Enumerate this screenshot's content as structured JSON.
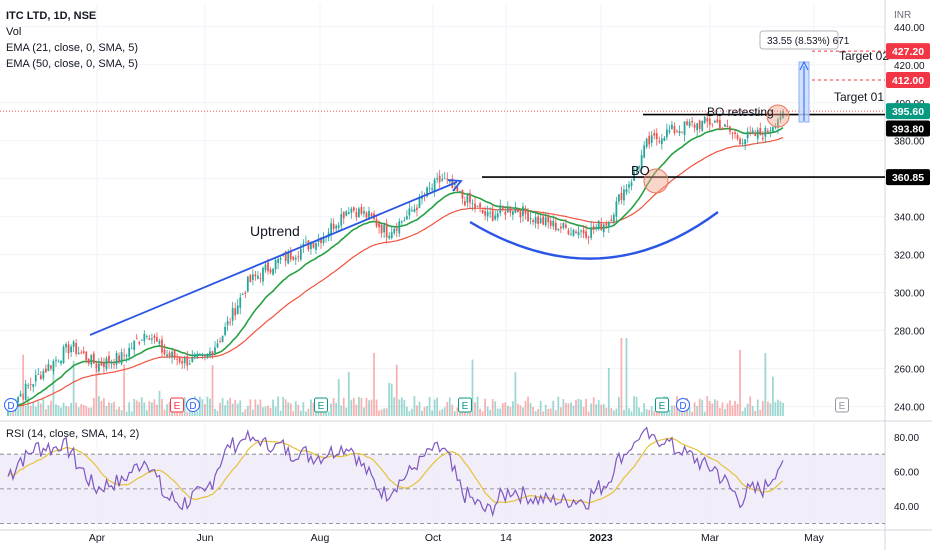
{
  "header": {
    "symbol_line": "ITC LTD, 1D, NSE",
    "indicators": [
      "Vol",
      "EMA (21, close, 0, SMA, 5)",
      "EMA (50, close, 0, SMA, 5)"
    ],
    "currency": "INR"
  },
  "rsi_label": "RSI (14, close, SMA, 14, 2)",
  "colors": {
    "up": "#26a69a",
    "down": "#ef5350",
    "ema21": "#26a043",
    "ema50": "#f0533d",
    "trend_arrow": "#2a55e5",
    "cup": "#2a55e5",
    "rsi": "#7e57c2",
    "rsi_ma": "#e5c23a",
    "rsi_band": "#ede7f6",
    "resistance": "#000000",
    "bo_circle": "#f4a38a",
    "target_box": "#c5d9fb"
  },
  "annotations": {
    "uptrend": "Uptrend",
    "bo": "BO",
    "bo_retesting": "BO retesting",
    "target_01": "Target 01",
    "target_02": "Target 02",
    "measure_text": "33.55 (8.53%) 671"
  },
  "price_badges": [
    {
      "value": "427.20",
      "bg": "#f23645",
      "fg": "#ffffff"
    },
    {
      "value": "412.00",
      "bg": "#f23645",
      "fg": "#ffffff"
    },
    {
      "value": "395.60",
      "bg": "#089981",
      "fg": "#ffffff"
    },
    {
      "value": "393.80",
      "bg": "#000000",
      "fg": "#ffffff"
    },
    {
      "value": "360.85",
      "bg": "#000000",
      "fg": "#ffffff"
    }
  ],
  "event_markers": [
    {
      "label": "D",
      "kind": "dividend"
    },
    {
      "label": "E",
      "kind": "earnings"
    },
    {
      "label": "D",
      "kind": "dividend"
    },
    {
      "label": "E",
      "kind": "earnings"
    },
    {
      "label": "E",
      "kind": "earnings"
    },
    {
      "label": "E",
      "kind": "earnings"
    },
    {
      "label": "D",
      "kind": "dividend"
    },
    {
      "label": "E",
      "kind": "earnings-upcoming"
    }
  ],
  "chart_data": {
    "type": "candlestick",
    "x_ticks": [
      "Apr",
      "Jun",
      "Aug",
      "Oct",
      "14",
      "2023",
      "Mar",
      "May"
    ],
    "y_ticks": [
      240,
      260,
      280,
      300,
      320,
      340,
      360,
      380,
      400,
      420,
      440
    ],
    "ylim": [
      234,
      452
    ],
    "rsi_ticks": [
      40,
      60,
      80
    ],
    "rsi_ylim": [
      28,
      88
    ],
    "rsi_bands": [
      30,
      50,
      70
    ],
    "resistance_levels": [
      360.85,
      393.8
    ],
    "targets": [
      412.0,
      427.2
    ],
    "last_price": 395.6,
    "anchors": [
      {
        "i": 0,
        "p": 240
      },
      {
        "i": 15,
        "p": 260
      },
      {
        "i": 25,
        "p": 272
      },
      {
        "i": 35,
        "p": 262
      },
      {
        "i": 45,
        "p": 266
      },
      {
        "i": 55,
        "p": 280
      },
      {
        "i": 62,
        "p": 268
      },
      {
        "i": 70,
        "p": 264
      },
      {
        "i": 78,
        "p": 265
      },
      {
        "i": 85,
        "p": 278
      },
      {
        "i": 95,
        "p": 305
      },
      {
        "i": 105,
        "p": 315
      },
      {
        "i": 115,
        "p": 322
      },
      {
        "i": 125,
        "p": 330
      },
      {
        "i": 135,
        "p": 345
      },
      {
        "i": 143,
        "p": 340
      },
      {
        "i": 150,
        "p": 332
      },
      {
        "i": 158,
        "p": 340
      },
      {
        "i": 167,
        "p": 354
      },
      {
        "i": 172,
        "p": 360
      },
      {
        "i": 180,
        "p": 350
      },
      {
        "i": 190,
        "p": 340
      },
      {
        "i": 200,
        "p": 345
      },
      {
        "i": 210,
        "p": 338
      },
      {
        "i": 220,
        "p": 334
      },
      {
        "i": 230,
        "p": 332
      },
      {
        "i": 238,
        "p": 338
      },
      {
        "i": 243,
        "p": 352
      },
      {
        "i": 248,
        "p": 362
      },
      {
        "i": 253,
        "p": 378
      },
      {
        "i": 260,
        "p": 384
      },
      {
        "i": 270,
        "p": 388
      },
      {
        "i": 280,
        "p": 390
      },
      {
        "i": 290,
        "p": 381
      },
      {
        "i": 300,
        "p": 384
      },
      {
        "i": 307,
        "p": 395.6
      }
    ]
  }
}
